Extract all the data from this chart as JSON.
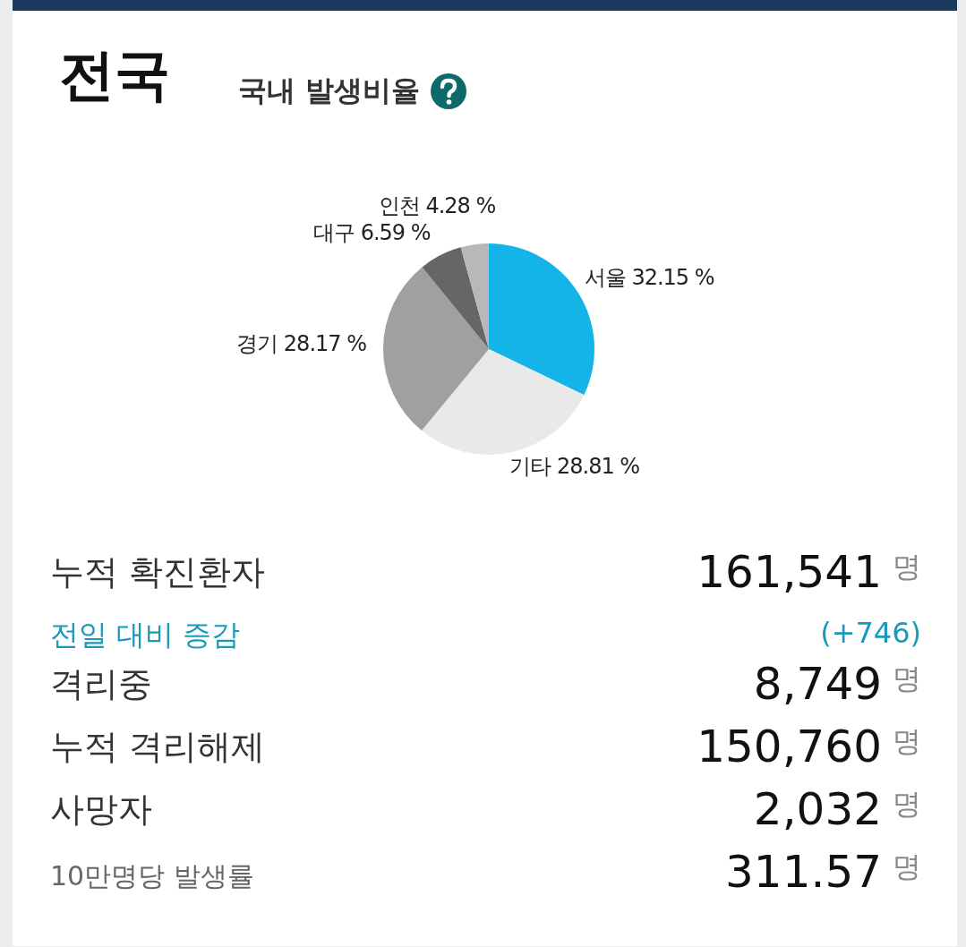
{
  "chart_data": [
    {
      "type": "pie",
      "title": "전국",
      "subtitle": "국내 발생비율",
      "categories": [
        "서울",
        "기타",
        "경기",
        "대구",
        "인천"
      ],
      "values": [
        32.15,
        28.81,
        28.17,
        6.59,
        4.28
      ],
      "value_labels": [
        "32.15 %",
        "28.81 %",
        "28.17 %",
        "6.59 %",
        "4.28 %"
      ],
      "colors": [
        "#14b4e8",
        "#e8e9e8",
        "#a0a0a0",
        "#666666",
        "#b8b8b8"
      ]
    },
    {
      "type": "other",
      "annotations": [
        "누적 확진환자",
        "161,541 명",
        "전일 대비 증감",
        "(+746)",
        "격리중",
        "8,749 명",
        "누적 격리해제",
        "150,760 명",
        "사망자",
        "2,032 명",
        "10만명당 발생률",
        "311.57 명"
      ]
    }
  ]
}
